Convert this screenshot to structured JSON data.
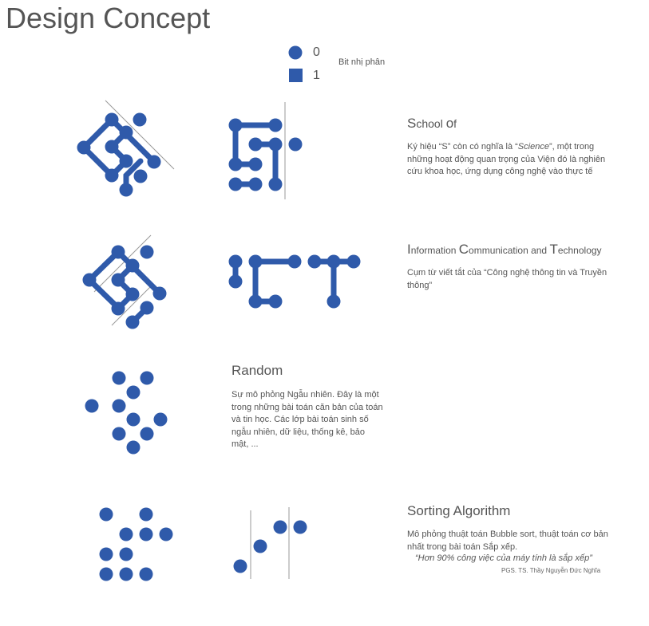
{
  "title": "Design Concept",
  "legend": {
    "zero_label": "0",
    "one_label": "1",
    "caption": "Bit nhị phân",
    "color": "#2F5AAA"
  },
  "sections": [
    {
      "heading_parts": [
        "S",
        "chool ",
        "o",
        "f"
      ],
      "text_before": "Ký hiệu “S” còn có nghĩa là “",
      "text_italic": "Science",
      "text_after": "”, một trong những hoạt động quan trọng của Viện đó là nghiên cứu khoa học, ứng dụng công nghệ vào thực tế"
    },
    {
      "heading_parts": [
        "I",
        "nformation ",
        "C",
        "ommunication and ",
        "T",
        "echnology"
      ],
      "text": "Cụm từ viết tắt của “Công nghệ thông tin và Truyền thông”"
    },
    {
      "heading": "Random",
      "text": "Sự mô phỏng Ngẫu nhiên. Đây là một trong những bài toán căn bản của toán và tin học. Các lớp bài toán sinh số ngẫu nhiên, dữ liệu, thống kê, bảo mật, ..."
    },
    {
      "heading": "Sorting Algorithm",
      "text": "Mô phỏng thuật toán Bubble sort, thuật toán cơ bản nhất trong bài toán Sắp xếp.",
      "quote": "“Hơn 90% công việc của máy tính là sắp xếp”",
      "credit": "PGS. TS. Thầy Nguyễn Đức Nghĩa"
    }
  ]
}
